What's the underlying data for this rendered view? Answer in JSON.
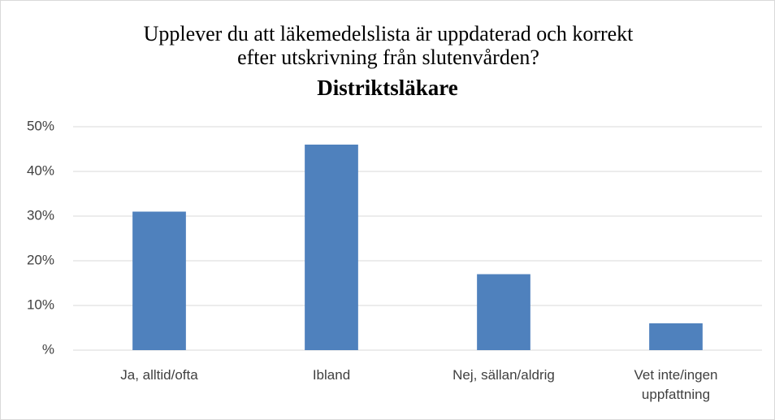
{
  "chart_data": {
    "type": "bar",
    "title": "Upplever du att läkemedelslista är uppdaterad och korrekt efter utskrivning från slutenvården?",
    "subtitle": "Distriktsläkare",
    "categories": [
      "Ja, alltid/ofta",
      "Ibland",
      "Nej, sällan/aldrig",
      "Vet inte/ingen uppfattning"
    ],
    "values": [
      31,
      46,
      17,
      6
    ],
    "color": "#4f81bd",
    "ylim": [
      0,
      50
    ],
    "yticks": [
      {
        "value": 0,
        "label": "%"
      },
      {
        "value": 10,
        "label": "10%"
      },
      {
        "value": 20,
        "label": "20%"
      },
      {
        "value": 30,
        "label": "30%"
      },
      {
        "value": 40,
        "label": "40%"
      },
      {
        "value": 50,
        "label": "50%"
      }
    ],
    "grid": true
  }
}
